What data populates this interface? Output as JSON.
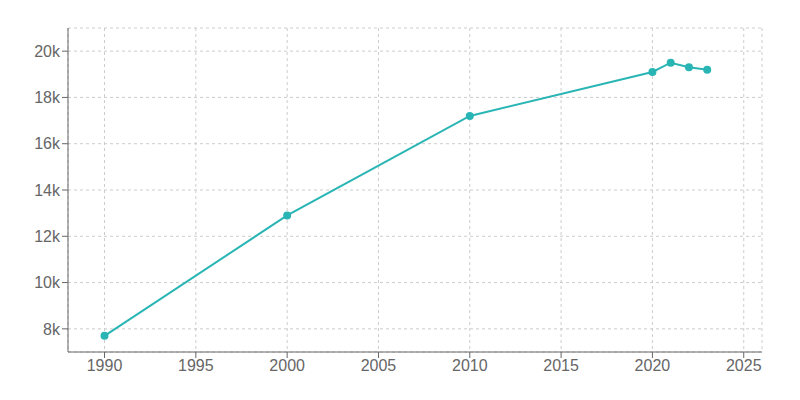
{
  "chart_data": {
    "type": "line",
    "x": [
      1990,
      2000,
      2010,
      2020,
      2021,
      2022,
      2023
    ],
    "values": [
      7700,
      12900,
      17200,
      19100,
      19500,
      19300,
      19200
    ],
    "color": "#2ab5b5",
    "marker": "circle",
    "xlim": [
      1988,
      2026
    ],
    "ylim": [
      7000,
      21000
    ],
    "xticks": [
      1990,
      1995,
      2000,
      2005,
      2010,
      2015,
      2020,
      2025
    ],
    "yticks": [
      {
        "value": 8000,
        "label": "8k"
      },
      {
        "value": 10000,
        "label": "10k"
      },
      {
        "value": 12000,
        "label": "12k"
      },
      {
        "value": 14000,
        "label": "14k"
      },
      {
        "value": 16000,
        "label": "16k"
      },
      {
        "value": 18000,
        "label": "18k"
      },
      {
        "value": 20000,
        "label": "20k"
      }
    ],
    "grid": true
  }
}
